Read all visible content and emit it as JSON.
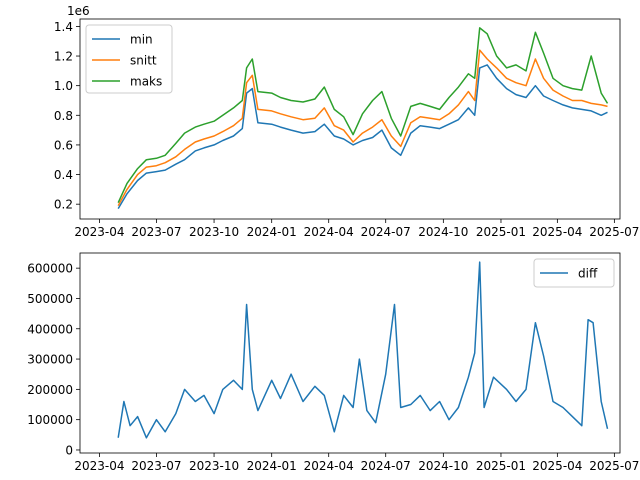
{
  "chart_data": [
    {
      "type": "line",
      "offset_label": "1e6",
      "x_ticks": [
        "2023-04",
        "2023-07",
        "2023-10",
        "2024-01",
        "2024-04",
        "2024-07",
        "2024-10",
        "2025-01",
        "2025-04",
        "2025-07"
      ],
      "y_ticks": [
        "0.2",
        "0.4",
        "0.6",
        "0.8",
        "1.0",
        "1.2",
        "1.4"
      ],
      "xlim": [
        "2023-03-01",
        "2025-07-10"
      ],
      "ylim": [
        0.1,
        1.45
      ],
      "legend_placement": "upper left",
      "grid": false,
      "series": [
        {
          "name": "min",
          "color": "#1f77b4",
          "points": [
            [
              "2023-05-01",
              0.17
            ],
            [
              "2023-05-15",
              0.27
            ],
            [
              "2023-06-01",
              0.36
            ],
            [
              "2023-06-15",
              0.41
            ],
            [
              "2023-07-01",
              0.42
            ],
            [
              "2023-07-15",
              0.43
            ],
            [
              "2023-08-01",
              0.47
            ],
            [
              "2023-08-15",
              0.5
            ],
            [
              "2023-09-01",
              0.56
            ],
            [
              "2023-09-15",
              0.58
            ],
            [
              "2023-10-01",
              0.6
            ],
            [
              "2023-10-15",
              0.63
            ],
            [
              "2023-11-01",
              0.66
            ],
            [
              "2023-11-15",
              0.71
            ],
            [
              "2023-11-22",
              0.95
            ],
            [
              "2023-12-01",
              0.98
            ],
            [
              "2023-12-10",
              0.75
            ],
            [
              "2024-01-01",
              0.74
            ],
            [
              "2024-01-15",
              0.72
            ],
            [
              "2024-02-01",
              0.7
            ],
            [
              "2024-02-20",
              0.68
            ],
            [
              "2024-03-10",
              0.69
            ],
            [
              "2024-03-25",
              0.74
            ],
            [
              "2024-04-10",
              0.66
            ],
            [
              "2024-04-25",
              0.64
            ],
            [
              "2024-05-10",
              0.6
            ],
            [
              "2024-05-25",
              0.63
            ],
            [
              "2024-06-10",
              0.65
            ],
            [
              "2024-06-25",
              0.7
            ],
            [
              "2024-07-10",
              0.58
            ],
            [
              "2024-07-25",
              0.53
            ],
            [
              "2024-08-10",
              0.68
            ],
            [
              "2024-08-25",
              0.73
            ],
            [
              "2024-09-10",
              0.72
            ],
            [
              "2024-09-25",
              0.71
            ],
            [
              "2024-10-10",
              0.74
            ],
            [
              "2024-10-25",
              0.77
            ],
            [
              "2024-11-10",
              0.85
            ],
            [
              "2024-11-20",
              0.8
            ],
            [
              "2024-11-28",
              1.12
            ],
            [
              "2024-12-10",
              1.14
            ],
            [
              "2024-12-25",
              1.05
            ],
            [
              "2025-01-10",
              0.98
            ],
            [
              "2025-01-25",
              0.94
            ],
            [
              "2025-02-10",
              0.92
            ],
            [
              "2025-02-25",
              1.0
            ],
            [
              "2025-03-10",
              0.93
            ],
            [
              "2025-03-25",
              0.9
            ],
            [
              "2025-04-10",
              0.87
            ],
            [
              "2025-04-25",
              0.85
            ],
            [
              "2025-05-10",
              0.84
            ],
            [
              "2025-05-25",
              0.83
            ],
            [
              "2025-06-10",
              0.8
            ],
            [
              "2025-06-20",
              0.82
            ]
          ]
        },
        {
          "name": "snitt",
          "color": "#ff7f0e",
          "points": [
            [
              "2023-05-01",
              0.19
            ],
            [
              "2023-05-15",
              0.3
            ],
            [
              "2023-06-01",
              0.4
            ],
            [
              "2023-06-15",
              0.45
            ],
            [
              "2023-07-01",
              0.46
            ],
            [
              "2023-07-15",
              0.48
            ],
            [
              "2023-08-01",
              0.52
            ],
            [
              "2023-08-15",
              0.57
            ],
            [
              "2023-09-01",
              0.62
            ],
            [
              "2023-09-15",
              0.64
            ],
            [
              "2023-10-01",
              0.66
            ],
            [
              "2023-10-15",
              0.69
            ],
            [
              "2023-11-01",
              0.73
            ],
            [
              "2023-11-15",
              0.78
            ],
            [
              "2023-11-22",
              1.02
            ],
            [
              "2023-12-01",
              1.07
            ],
            [
              "2023-12-10",
              0.84
            ],
            [
              "2024-01-01",
              0.83
            ],
            [
              "2024-01-15",
              0.81
            ],
            [
              "2024-02-01",
              0.79
            ],
            [
              "2024-02-20",
              0.77
            ],
            [
              "2024-03-10",
              0.78
            ],
            [
              "2024-03-25",
              0.85
            ],
            [
              "2024-04-10",
              0.73
            ],
            [
              "2024-04-25",
              0.7
            ],
            [
              "2024-05-10",
              0.62
            ],
            [
              "2024-05-25",
              0.68
            ],
            [
              "2024-06-10",
              0.72
            ],
            [
              "2024-06-25",
              0.77
            ],
            [
              "2024-07-10",
              0.66
            ],
            [
              "2024-07-25",
              0.59
            ],
            [
              "2024-08-10",
              0.75
            ],
            [
              "2024-08-25",
              0.79
            ],
            [
              "2024-09-10",
              0.78
            ],
            [
              "2024-09-25",
              0.77
            ],
            [
              "2024-10-10",
              0.81
            ],
            [
              "2024-10-25",
              0.87
            ],
            [
              "2024-11-10",
              0.96
            ],
            [
              "2024-11-20",
              0.9
            ],
            [
              "2024-11-28",
              1.24
            ],
            [
              "2024-12-10",
              1.18
            ],
            [
              "2024-12-25",
              1.12
            ],
            [
              "2025-01-10",
              1.05
            ],
            [
              "2025-01-25",
              1.02
            ],
            [
              "2025-02-10",
              1.0
            ],
            [
              "2025-02-25",
              1.18
            ],
            [
              "2025-03-10",
              1.05
            ],
            [
              "2025-03-25",
              0.97
            ],
            [
              "2025-04-10",
              0.93
            ],
            [
              "2025-04-25",
              0.9
            ],
            [
              "2025-05-10",
              0.9
            ],
            [
              "2025-05-25",
              0.88
            ],
            [
              "2025-06-10",
              0.87
            ],
            [
              "2025-06-20",
              0.86
            ]
          ]
        },
        {
          "name": "maks",
          "color": "#2ca02c",
          "points": [
            [
              "2023-05-01",
              0.21
            ],
            [
              "2023-05-15",
              0.34
            ],
            [
              "2023-06-01",
              0.44
            ],
            [
              "2023-06-15",
              0.5
            ],
            [
              "2023-07-01",
              0.51
            ],
            [
              "2023-07-15",
              0.53
            ],
            [
              "2023-08-01",
              0.61
            ],
            [
              "2023-08-15",
              0.68
            ],
            [
              "2023-09-01",
              0.72
            ],
            [
              "2023-09-15",
              0.74
            ],
            [
              "2023-10-01",
              0.76
            ],
            [
              "2023-10-15",
              0.8
            ],
            [
              "2023-11-01",
              0.85
            ],
            [
              "2023-11-15",
              0.9
            ],
            [
              "2023-11-22",
              1.12
            ],
            [
              "2023-12-01",
              1.18
            ],
            [
              "2023-12-10",
              0.96
            ],
            [
              "2024-01-01",
              0.95
            ],
            [
              "2024-01-15",
              0.92
            ],
            [
              "2024-02-01",
              0.9
            ],
            [
              "2024-02-20",
              0.89
            ],
            [
              "2024-03-10",
              0.91
            ],
            [
              "2024-03-25",
              0.99
            ],
            [
              "2024-04-10",
              0.84
            ],
            [
              "2024-04-25",
              0.79
            ],
            [
              "2024-05-10",
              0.67
            ],
            [
              "2024-05-25",
              0.81
            ],
            [
              "2024-06-10",
              0.9
            ],
            [
              "2024-06-25",
              0.96
            ],
            [
              "2024-07-10",
              0.78
            ],
            [
              "2024-07-25",
              0.66
            ],
            [
              "2024-08-10",
              0.86
            ],
            [
              "2024-08-25",
              0.88
            ],
            [
              "2024-09-10",
              0.86
            ],
            [
              "2024-09-25",
              0.84
            ],
            [
              "2024-10-10",
              0.92
            ],
            [
              "2024-10-25",
              0.99
            ],
            [
              "2024-11-10",
              1.08
            ],
            [
              "2024-11-20",
              1.05
            ],
            [
              "2024-11-28",
              1.39
            ],
            [
              "2024-12-10",
              1.35
            ],
            [
              "2024-12-25",
              1.2
            ],
            [
              "2025-01-10",
              1.12
            ],
            [
              "2025-01-25",
              1.14
            ],
            [
              "2025-02-10",
              1.1
            ],
            [
              "2025-02-25",
              1.36
            ],
            [
              "2025-03-10",
              1.22
            ],
            [
              "2025-03-25",
              1.05
            ],
            [
              "2025-04-10",
              1.0
            ],
            [
              "2025-04-25",
              0.98
            ],
            [
              "2025-05-10",
              0.97
            ],
            [
              "2025-05-25",
              1.2
            ],
            [
              "2025-06-10",
              0.95
            ],
            [
              "2025-06-20",
              0.88
            ]
          ]
        }
      ]
    },
    {
      "type": "line",
      "x_ticks": [
        "2023-04",
        "2023-07",
        "2023-10",
        "2024-01",
        "2024-04",
        "2024-07",
        "2024-10",
        "2025-01",
        "2025-04",
        "2025-07"
      ],
      "y_ticks": [
        "0",
        "100000",
        "200000",
        "300000",
        "400000",
        "500000",
        "600000"
      ],
      "xlim": [
        "2023-03-01",
        "2025-07-10"
      ],
      "ylim": [
        -10000,
        650000
      ],
      "legend_placement": "upper right",
      "grid": false,
      "series": [
        {
          "name": "diff",
          "color": "#1f77b4",
          "points": [
            [
              "2023-05-01",
              40000
            ],
            [
              "2023-05-10",
              160000
            ],
            [
              "2023-05-20",
              80000
            ],
            [
              "2023-06-01",
              110000
            ],
            [
              "2023-06-15",
              40000
            ],
            [
              "2023-07-01",
              100000
            ],
            [
              "2023-07-15",
              60000
            ],
            [
              "2023-08-01",
              120000
            ],
            [
              "2023-08-15",
              200000
            ],
            [
              "2023-09-01",
              160000
            ],
            [
              "2023-09-15",
              180000
            ],
            [
              "2023-10-01",
              120000
            ],
            [
              "2023-10-15",
              200000
            ],
            [
              "2023-11-01",
              230000
            ],
            [
              "2023-11-15",
              200000
            ],
            [
              "2023-11-22",
              480000
            ],
            [
              "2023-12-01",
              200000
            ],
            [
              "2023-12-10",
              130000
            ],
            [
              "2024-01-01",
              230000
            ],
            [
              "2024-01-15",
              170000
            ],
            [
              "2024-02-01",
              250000
            ],
            [
              "2024-02-20",
              160000
            ],
            [
              "2024-03-10",
              210000
            ],
            [
              "2024-03-25",
              180000
            ],
            [
              "2024-04-10",
              60000
            ],
            [
              "2024-04-25",
              180000
            ],
            [
              "2024-05-10",
              140000
            ],
            [
              "2024-05-20",
              300000
            ],
            [
              "2024-06-01",
              130000
            ],
            [
              "2024-06-15",
              90000
            ],
            [
              "2024-07-01",
              250000
            ],
            [
              "2024-07-15",
              480000
            ],
            [
              "2024-07-25",
              140000
            ],
            [
              "2024-08-10",
              150000
            ],
            [
              "2024-08-25",
              180000
            ],
            [
              "2024-09-10",
              130000
            ],
            [
              "2024-09-25",
              160000
            ],
            [
              "2024-10-10",
              100000
            ],
            [
              "2024-10-25",
              140000
            ],
            [
              "2024-11-10",
              240000
            ],
            [
              "2024-11-20",
              320000
            ],
            [
              "2024-11-28",
              620000
            ],
            [
              "2024-12-05",
              140000
            ],
            [
              "2024-12-20",
              240000
            ],
            [
              "2025-01-10",
              200000
            ],
            [
              "2025-01-25",
              160000
            ],
            [
              "2025-02-10",
              200000
            ],
            [
              "2025-02-25",
              420000
            ],
            [
              "2025-03-10",
              310000
            ],
            [
              "2025-03-25",
              160000
            ],
            [
              "2025-04-10",
              140000
            ],
            [
              "2025-04-25",
              110000
            ],
            [
              "2025-05-10",
              80000
            ],
            [
              "2025-05-20",
              430000
            ],
            [
              "2025-05-28",
              420000
            ],
            [
              "2025-06-10",
              160000
            ],
            [
              "2025-06-20",
              70000
            ]
          ]
        }
      ]
    }
  ]
}
